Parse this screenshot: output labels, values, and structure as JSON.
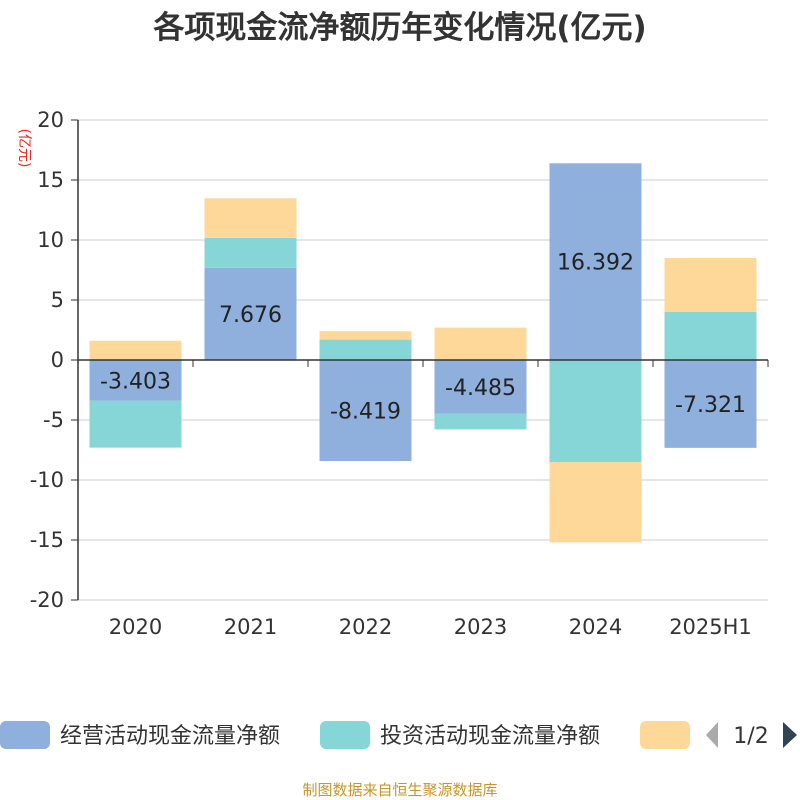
{
  "chart_data": {
    "type": "bar",
    "stacked": true,
    "title": "各项现金流净额历年变化情况(亿元)",
    "ylabel": "(亿元)",
    "categories": [
      "2020",
      "2021",
      "2022",
      "2023",
      "2024",
      "2025H1"
    ],
    "ylim": [
      -20,
      20
    ],
    "yticks": [
      20,
      15,
      10,
      5,
      0,
      -5,
      -10,
      -15,
      -20
    ],
    "grid": true,
    "legend_position": "bottom",
    "series": [
      {
        "name": "经营活动现金流量净额",
        "color": "#8fb0dc",
        "values": [
          -3.403,
          7.676,
          -8.419,
          -4.485,
          16.392,
          -7.321
        ],
        "labels": [
          "-3.403",
          "7.676",
          "-8.419",
          "-4.485",
          "16.392",
          "-7.321"
        ]
      },
      {
        "name": "投资活动现金流量净额",
        "color": "#86d6d8",
        "values": [
          -3.9,
          2.5,
          1.7,
          -1.3,
          -8.5,
          4.0
        ]
      },
      {
        "name": "",
        "color": "#fed898",
        "values": [
          1.6,
          3.3,
          0.7,
          2.7,
          -6.7,
          4.5
        ]
      }
    ],
    "legend": {
      "page": "1/2"
    },
    "source": "制图数据来自恒生聚源数据库"
  }
}
